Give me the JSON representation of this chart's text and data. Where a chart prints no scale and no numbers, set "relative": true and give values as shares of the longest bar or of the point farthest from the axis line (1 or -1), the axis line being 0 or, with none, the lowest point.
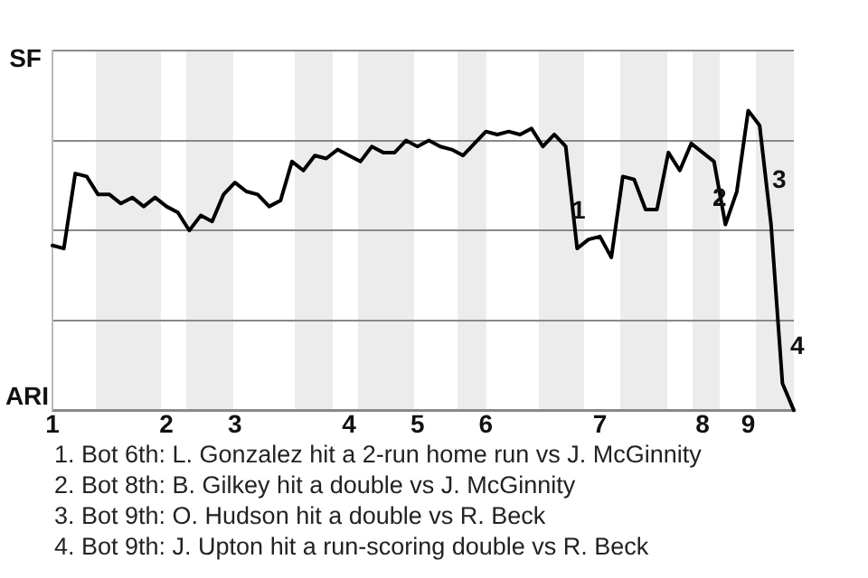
{
  "chart_data": {
    "type": "line",
    "relative": true,
    "legend": false,
    "grid": "y",
    "marker": "none",
    "line_style": "solid",
    "categories": [
      "1",
      null,
      null,
      null,
      null,
      null,
      null,
      null,
      null,
      null,
      "2",
      null,
      null,
      null,
      null,
      null,
      "3",
      null,
      null,
      null,
      null,
      null,
      null,
      null,
      null,
      null,
      "4",
      null,
      null,
      null,
      null,
      null,
      "5",
      null,
      null,
      null,
      null,
      null,
      "6",
      null,
      null,
      null,
      null,
      null,
      null,
      null,
      null,
      null,
      "7",
      null,
      null,
      null,
      null,
      null,
      null,
      null,
      null,
      "8",
      null,
      null,
      null,
      "9",
      null,
      null,
      null,
      null
    ],
    "series": [
      {
        "color": "#000000",
        "values": [
          0.55,
          0.54,
          0.79,
          0.78,
          0.72,
          0.72,
          0.69,
          0.71,
          0.68,
          0.71,
          0.68,
          0.66,
          0.6,
          0.65,
          0.63,
          0.72,
          0.76,
          0.73,
          0.72,
          0.68,
          0.7,
          0.83,
          0.8,
          0.85,
          0.84,
          0.87,
          0.85,
          0.83,
          0.88,
          0.86,
          0.86,
          0.9,
          0.88,
          0.9,
          0.88,
          0.87,
          0.85,
          0.89,
          0.93,
          0.92,
          0.93,
          0.92,
          0.94,
          0.88,
          0.92,
          0.88,
          0.54,
          0.57,
          0.58,
          0.51,
          0.78,
          0.77,
          0.67,
          0.67,
          0.86,
          0.8,
          0.89,
          0.86,
          0.83,
          0.62,
          0.73,
          1,
          0.95,
          0.62,
          0.09,
          0
        ]
      }
    ],
    "annotations": [
      "SF",
      "ARI",
      "1",
      "2",
      "3",
      "4",
      "1. Bot 6th: L. Gonzalez hit a 2-run home run vs J. McGinnity",
      "2. Bot 8th: B. Gilkey hit a double vs J. McGinnity",
      "3. Bot 9th: O. Hudson hit a double vs R. Beck",
      "4. Bot 9th: J. Upton hit a run-scoring double vs R. Beck"
    ]
  }
}
